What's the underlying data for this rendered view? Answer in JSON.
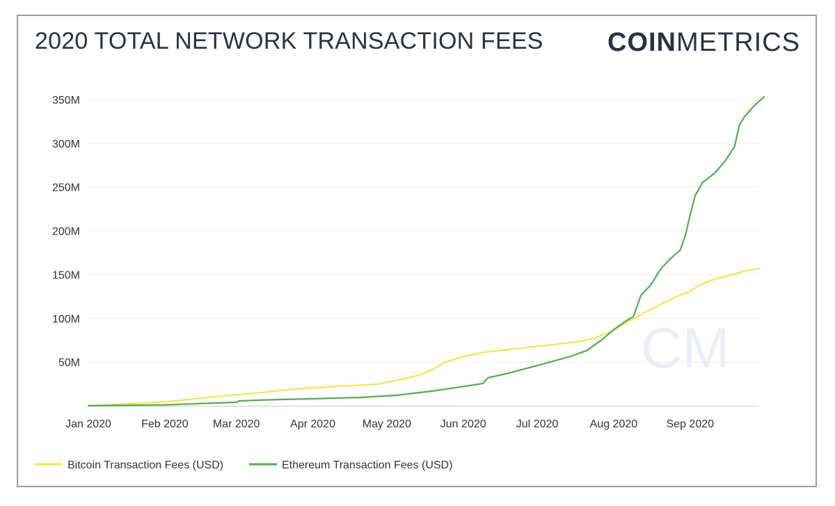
{
  "brand": {
    "bold": "COIN",
    "light": "METRICS",
    "watermark": "CM"
  },
  "chart_data": {
    "type": "line",
    "title": "2020 TOTAL NETWORK TRANSACTION FEES",
    "xlabel": "",
    "ylabel": "",
    "x_ticks": [
      "Jan 2020",
      "Feb 2020",
      "Mar 2020",
      "Apr 2020",
      "May 2020",
      "Jun 2020",
      "Jul 2020",
      "Aug 2020",
      "Sep 2020"
    ],
    "x_tick_days": [
      0,
      31,
      60,
      91,
      121,
      152,
      182,
      213,
      244
    ],
    "x_range_days": [
      0,
      272
    ],
    "y_ticks": [
      "50M",
      "100M",
      "150M",
      "200M",
      "250M",
      "300M",
      "350M"
    ],
    "y_tick_values": [
      50,
      100,
      150,
      200,
      250,
      300,
      350
    ],
    "ylim": [
      0,
      350
    ],
    "y_unit": "M USD",
    "grid": true,
    "legend": "bottom-left",
    "series": [
      {
        "name": "Bitcoin Transaction Fees (USD)",
        "color": "#f5e642",
        "points": [
          [
            0,
            0
          ],
          [
            15,
            2
          ],
          [
            31,
            4.5
          ],
          [
            40,
            7
          ],
          [
            50,
            10
          ],
          [
            60,
            12.5
          ],
          [
            70,
            15
          ],
          [
            80,
            18
          ],
          [
            91,
            20.5
          ],
          [
            100,
            22
          ],
          [
            110,
            23.5
          ],
          [
            118,
            25
          ],
          [
            121,
            27
          ],
          [
            128,
            31
          ],
          [
            134,
            35
          ],
          [
            140,
            42
          ],
          [
            145,
            50
          ],
          [
            152,
            56
          ],
          [
            160,
            61
          ],
          [
            170,
            64
          ],
          [
            182,
            68
          ],
          [
            192,
            71
          ],
          [
            200,
            74
          ],
          [
            206,
            78
          ],
          [
            213,
            86
          ],
          [
            218,
            95
          ],
          [
            224,
            104
          ],
          [
            228,
            110
          ],
          [
            232,
            116
          ],
          [
            238,
            124
          ],
          [
            244,
            131
          ],
          [
            248,
            138
          ],
          [
            252,
            143
          ],
          [
            260,
            149
          ],
          [
            266,
            154
          ],
          [
            272,
            157
          ]
        ]
      },
      {
        "name": "Ethereum Transaction Fees (USD)",
        "color": "#4caf50",
        "points": [
          [
            0,
            0
          ],
          [
            31,
            1
          ],
          [
            60,
            4
          ],
          [
            61,
            5.5
          ],
          [
            70,
            6.5
          ],
          [
            91,
            8
          ],
          [
            110,
            9.5
          ],
          [
            125,
            12
          ],
          [
            140,
            17
          ],
          [
            152,
            22
          ],
          [
            160,
            25.5
          ],
          [
            162,
            32
          ],
          [
            170,
            37
          ],
          [
            182,
            46
          ],
          [
            195,
            56
          ],
          [
            202,
            63
          ],
          [
            208,
            75
          ],
          [
            213,
            87
          ],
          [
            218,
            97
          ],
          [
            221,
            102
          ],
          [
            224,
            126
          ],
          [
            228,
            138
          ],
          [
            232,
            156
          ],
          [
            236,
            168
          ],
          [
            240,
            178
          ],
          [
            242,
            194
          ],
          [
            244,
            218
          ],
          [
            246,
            240
          ],
          [
            249,
            255
          ],
          [
            254,
            266
          ],
          [
            258,
            279
          ],
          [
            262,
            296
          ],
          [
            264,
            321
          ],
          [
            266,
            330
          ],
          [
            270,
            343
          ],
          [
            274,
            353
          ]
        ]
      }
    ]
  }
}
